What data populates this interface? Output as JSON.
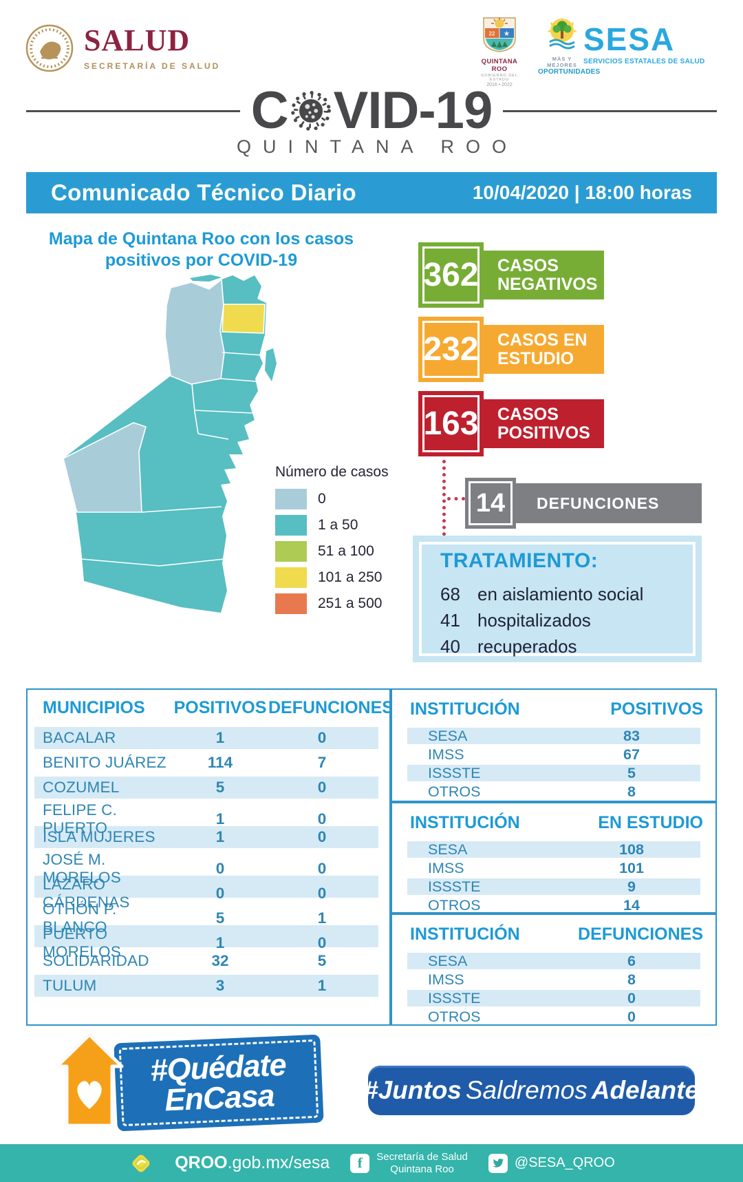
{
  "header": {
    "salud": {
      "title": "SALUD",
      "subtitle": "SECRETARÍA DE SALUD"
    },
    "qroo_crest": {
      "line1": "QUINTANA ROO",
      "line2": "GOBIERNO DEL ESTADO",
      "line3": "2016 • 2022"
    },
    "oportunidades": {
      "line1": "MÁS Y MEJORES",
      "line2": "OPORTUNIDADES"
    },
    "sesa": {
      "title": "SESA",
      "subtitle": "SERVICIOS ESTATALES DE SALUD"
    }
  },
  "title": {
    "covid_c": "C",
    "covid_rest": "VID-19",
    "state": "QUINTANA ROO"
  },
  "banner": {
    "title": "Comunicado Técnico Diario",
    "datetime": "10/04/2020 | 18:00 horas",
    "bg_color": "#2B9CD3"
  },
  "map": {
    "title_line1": "Mapa de Quintana Roo con los casos",
    "title_line2": "positivos por COVID-19",
    "legend": {
      "title": "Número de casos",
      "items": [
        {
          "label": "0",
          "color": "#A9CCD9"
        },
        {
          "label": "1 a 50",
          "color": "#57BEC2"
        },
        {
          "label": "51 a 100",
          "color": "#AECB53"
        },
        {
          "label": "101 a 250",
          "color": "#F0DA4E"
        },
        {
          "label": "251 a 500",
          "color": "#E8794F"
        }
      ]
    }
  },
  "stats": {
    "badges": [
      {
        "value": "362",
        "label": "CASOS NEGATIVOS",
        "color": "#77AD35"
      },
      {
        "value": "232",
        "label": "CASOS EN ESTUDIO",
        "color": "#F6A931"
      },
      {
        "value": "163",
        "label": "CASOS POSITIVOS",
        "color": "#BE202E"
      }
    ],
    "deaths": {
      "value": "14",
      "label": "DEFUNCIONES",
      "color": "#7D7F82"
    }
  },
  "treatment": {
    "title": "TRATAMIENTO:",
    "items": [
      {
        "value": "68",
        "label": "en aislamiento social"
      },
      {
        "value": "41",
        "label": "hospitalizados"
      },
      {
        "value": "40",
        "label": "recuperados"
      }
    ]
  },
  "municipalities": {
    "headers": [
      "MUNICIPIOS",
      "POSITIVOS",
      "DEFUNCIONES"
    ],
    "rows": [
      [
        "BACALAR",
        "1",
        "0"
      ],
      [
        "BENITO JUÁREZ",
        "114",
        "7"
      ],
      [
        "COZUMEL",
        "5",
        "0"
      ],
      [
        "FELIPE C. PUERTO",
        "1",
        "0"
      ],
      [
        "ISLA MUJERES",
        "1",
        "0"
      ],
      [
        "JOSÉ M. MORELOS",
        "0",
        "0"
      ],
      [
        "LÁZARO CÁRDENAS",
        "0",
        "0"
      ],
      [
        "OTHÓN P. BLANCO",
        "5",
        "1"
      ],
      [
        "PUERTO MORELOS",
        "1",
        "0"
      ],
      [
        "SOLIDARIDAD",
        "32",
        "5"
      ],
      [
        "TULUM",
        "3",
        "1"
      ]
    ]
  },
  "institutions": [
    {
      "headers": [
        "INSTITUCIÓN",
        "POSITIVOS"
      ],
      "rows": [
        [
          "SESA",
          "83"
        ],
        [
          "IMSS",
          "67"
        ],
        [
          "ISSSTE",
          "5"
        ],
        [
          "OTROS",
          "8"
        ]
      ]
    },
    {
      "headers": [
        "INSTITUCIÓN",
        "EN ESTUDIO"
      ],
      "rows": [
        [
          "SESA",
          "108"
        ],
        [
          "IMSS",
          "101"
        ],
        [
          "ISSSTE",
          "9"
        ],
        [
          "OTROS",
          "14"
        ]
      ]
    },
    {
      "headers": [
        "INSTITUCIÓN",
        "DEFUNCIONES"
      ],
      "rows": [
        [
          "SESA",
          "6"
        ],
        [
          "IMSS",
          "8"
        ],
        [
          "ISSSTE",
          "0"
        ],
        [
          "OTROS",
          "0"
        ]
      ]
    }
  ],
  "campaign": {
    "stay_home_line1": "#Quédate",
    "stay_home_line2": "EnCasa",
    "juntos_hash": "#Juntos",
    "juntos_mid": "Saldremos",
    "juntos_bold": "Adelante"
  },
  "footer": {
    "site_bold": "QROO",
    "site_rest": ".gob.mx/sesa",
    "facebook_line1": "Secretaría de Salud",
    "facebook_line2": "Quintana Roo",
    "twitter": "@SESA_QROO",
    "bg_color": "#34B4AB"
  },
  "icons": {
    "virus-icon": "coronavirus glyph replacing letter O",
    "house-heart-icon": "orange house with white heart",
    "salud-seal": "gold national seal",
    "facebook-icon": "f",
    "twitter-icon": "bird",
    "qroo-logo": "yellow diamond glyph"
  }
}
